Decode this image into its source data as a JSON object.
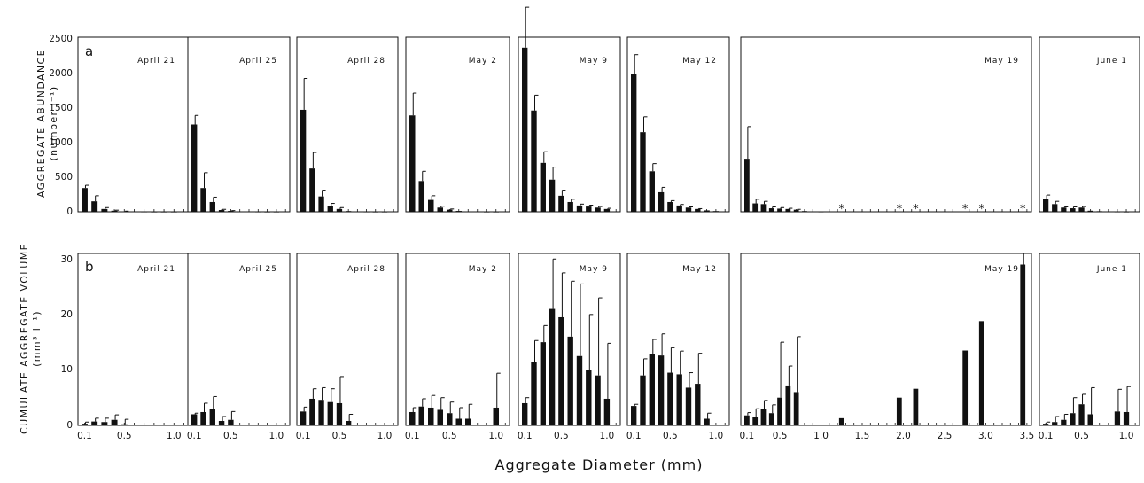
{
  "figure": {
    "x_title": "Aggregate Diameter (mm)",
    "row_a": {
      "letter": "a",
      "y_title_line1": "AGGREGATE ABUNDANCE",
      "y_title_line2": "(number l⁻¹)",
      "y_ticks": [
        "2500",
        "2000",
        "1500",
        "1000",
        "500",
        "0"
      ]
    },
    "row_b": {
      "letter": "b",
      "y_title_line1": "CUMULATE AGGREGATE VOLUME",
      "y_title_line2": "(mm³ l⁻¹)",
      "y_ticks": [
        "30",
        "20",
        "10",
        "0"
      ]
    }
  },
  "chart_data": [
    {
      "type": "bar",
      "row": "a",
      "ylim": [
        0,
        2500
      ],
      "ylabel": "AGGREGATE ABUNDANCE (number l-1)",
      "xlabel": "Aggregate Diameter (mm)",
      "panels": [
        {
          "label": "April 21",
          "xlim": [
            0.1,
            1.1
          ],
          "x": [
            0.1,
            0.2,
            0.3,
            0.4,
            0.5,
            0.6,
            0.7,
            0.8,
            0.9,
            1.0
          ],
          "values": [
            340,
            150,
            40,
            15,
            6,
            4,
            3,
            2,
            2,
            2
          ],
          "errors": [
            40,
            80,
            20,
            8,
            3,
            0,
            0,
            0,
            0,
            0
          ]
        },
        {
          "label": "April 25",
          "xlim": [
            0.1,
            1.1
          ],
          "x": [
            0.1,
            0.2,
            0.3,
            0.4,
            0.5,
            0.6,
            0.7,
            0.8,
            0.9,
            1.0
          ],
          "values": [
            1250,
            340,
            140,
            25,
            12,
            6,
            4,
            3,
            2,
            2
          ],
          "errors": [
            130,
            220,
            70,
            10,
            5,
            0,
            0,
            0,
            0,
            0
          ]
        },
        {
          "label": "April 28",
          "xlim": [
            0.1,
            1.1
          ],
          "x": [
            0.1,
            0.2,
            0.3,
            0.4,
            0.5,
            0.6,
            0.7,
            0.8,
            0.9,
            1.0
          ],
          "values": [
            1460,
            620,
            220,
            80,
            40,
            10,
            5,
            3,
            2,
            2
          ],
          "errors": [
            450,
            230,
            90,
            40,
            20,
            0,
            0,
            0,
            0,
            0
          ]
        },
        {
          "label": "May 2",
          "xlim": [
            0.1,
            1.1
          ],
          "x": [
            0.1,
            0.2,
            0.3,
            0.4,
            0.5,
            0.6,
            0.7,
            0.8,
            0.9,
            1.0
          ],
          "values": [
            1380,
            440,
            170,
            60,
            30,
            12,
            6,
            4,
            2,
            2
          ],
          "errors": [
            320,
            140,
            60,
            20,
            10,
            0,
            0,
            0,
            0,
            0
          ]
        },
        {
          "label": "May 9",
          "xlim": [
            0.1,
            1.1
          ],
          "x": [
            0.1,
            0.2,
            0.3,
            0.4,
            0.5,
            0.6,
            0.7,
            0.8,
            0.9,
            1.0
          ],
          "values": [
            2350,
            1450,
            700,
            460,
            230,
            140,
            90,
            75,
            60,
            40
          ],
          "errors": [
            580,
            220,
            160,
            180,
            80,
            40,
            20,
            20,
            15,
            10
          ]
        },
        {
          "label": "May 12",
          "xlim": [
            0.1,
            1.1
          ],
          "x": [
            0.1,
            0.2,
            0.3,
            0.4,
            0.5,
            0.6,
            0.7,
            0.8,
            0.9,
            1.0
          ],
          "values": [
            1970,
            1140,
            580,
            280,
            140,
            90,
            60,
            40,
            20,
            10
          ],
          "errors": [
            280,
            220,
            110,
            70,
            20,
            15,
            10,
            5,
            0,
            0
          ]
        },
        {
          "label": "May 19",
          "xlim": [
            0.1,
            3.5
          ],
          "x": [
            0.1,
            0.2,
            0.3,
            0.4,
            0.5,
            0.6,
            0.7,
            0.8,
            0.9,
            1.0
          ],
          "values": [
            760,
            120,
            110,
            50,
            45,
            40,
            30,
            10,
            5,
            3
          ],
          "errors": [
            460,
            60,
            40,
            20,
            15,
            10,
            5,
            0,
            0,
            0
          ],
          "markers_x": [
            1.25,
            1.95,
            2.15,
            2.75,
            2.95,
            3.45
          ],
          "marker_symbol": "*"
        },
        {
          "label": "June 1",
          "xlim": [
            0.1,
            1.1
          ],
          "x": [
            0.1,
            0.2,
            0.3,
            0.4,
            0.5,
            0.6,
            0.7,
            0.8,
            0.9,
            1.0
          ],
          "values": [
            190,
            110,
            60,
            50,
            60,
            15,
            8,
            5,
            3,
            2
          ],
          "errors": [
            50,
            40,
            10,
            20,
            15,
            0,
            0,
            0,
            0,
            0
          ]
        }
      ]
    },
    {
      "type": "bar",
      "row": "b",
      "ylim": [
        0,
        31
      ],
      "ylabel": "CUMULATE AGGREGATE VOLUME (mm3 l-1)",
      "xlabel": "Aggregate Diameter (mm)",
      "panels": [
        {
          "label": "April 21",
          "xlim": [
            0.1,
            1.1
          ],
          "x_ticks": [
            "0.1",
            "0.5",
            "1.0"
          ],
          "x": [
            0.1,
            0.2,
            0.3,
            0.4,
            0.5,
            0.6
          ],
          "values": [
            0.3,
            0.7,
            0.6,
            1.0,
            0.2,
            0.1
          ],
          "errors": [
            0.3,
            0.6,
            0.7,
            0.9,
            0.9,
            0
          ]
        },
        {
          "label": "April 25",
          "xlim": [
            0.1,
            1.1
          ],
          "x_ticks": [
            "0.1",
            "0.5",
            "1.0"
          ],
          "x": [
            0.1,
            0.2,
            0.3,
            0.4,
            0.5
          ],
          "values": [
            2.0,
            2.4,
            3.0,
            0.8,
            1.0
          ],
          "errors": [
            0.2,
            1.6,
            2.2,
            0.8,
            1.5
          ]
        },
        {
          "label": "April 28",
          "xlim": [
            0.1,
            1.1
          ],
          "x_ticks": [
            "0.1",
            "0.5",
            "1.0"
          ],
          "x": [
            0.1,
            0.2,
            0.3,
            0.4,
            0.5,
            0.6
          ],
          "values": [
            2.5,
            4.8,
            4.6,
            4.2,
            4.0,
            0.8
          ],
          "errors": [
            0.8,
            1.8,
            2.2,
            2.4,
            4.8,
            1.2
          ]
        },
        {
          "label": "May 2",
          "xlim": [
            0.1,
            1.1
          ],
          "x_ticks": [
            "0.1",
            "0.5",
            "1.0"
          ],
          "x": [
            0.1,
            0.2,
            0.3,
            0.4,
            0.5,
            0.6,
            0.7,
            1.0
          ],
          "values": [
            2.4,
            3.4,
            3.2,
            2.8,
            2.2,
            1.2,
            1.2,
            3.2
          ],
          "errors": [
            0.8,
            1.4,
            2.2,
            2.2,
            2.0,
            2.0,
            2.6,
            6.2
          ]
        },
        {
          "label": "May 9",
          "xlim": [
            0.1,
            1.1
          ],
          "x_ticks": [
            "0.1",
            "0.5",
            "1.0"
          ],
          "x": [
            0.1,
            0.2,
            0.3,
            0.4,
            0.5,
            0.6,
            0.7,
            0.8,
            0.9,
            1.0
          ],
          "values": [
            4.0,
            11.5,
            15.0,
            21.0,
            19.5,
            16.0,
            12.5,
            10.0,
            9.0,
            4.8
          ],
          "errors": [
            1.0,
            3.8,
            3.0,
            9.0,
            8.0,
            10.0,
            13.0,
            10.0,
            14.0,
            10.0
          ]
        },
        {
          "label": "May 12",
          "xlim": [
            0.1,
            1.1
          ],
          "x_ticks": [
            "0.1",
            "0.5",
            "1.0"
          ],
          "x": [
            0.1,
            0.2,
            0.3,
            0.4,
            0.5,
            0.6,
            0.7,
            0.8,
            0.9,
            1.0
          ],
          "values": [
            3.5,
            9.0,
            12.8,
            12.6,
            9.5,
            9.2,
            6.8,
            7.5,
            1.2,
            0
          ],
          "errors": [
            0.3,
            3.0,
            2.7,
            3.9,
            4.5,
            4.2,
            2.7,
            5.5,
            1.0,
            0
          ]
        },
        {
          "label": "May 19",
          "xlim": [
            0.1,
            3.5
          ],
          "x_ticks": [
            "0.1",
            "0.5",
            "1.0",
            "1.5",
            "2.0",
            "2.5",
            "3.0",
            "3.5"
          ],
          "x": [
            0.1,
            0.2,
            0.3,
            0.4,
            0.5,
            0.6,
            0.7,
            1.25,
            1.95,
            2.15,
            2.75,
            2.95,
            3.45
          ],
          "values": [
            1.8,
            1.5,
            3.0,
            2.2,
            5.0,
            7.2,
            6.0,
            1.3,
            5.0,
            6.6,
            13.5,
            18.8,
            29.0
          ],
          "errors": [
            0.5,
            1.5,
            1.5,
            1.5,
            10.0,
            3.5,
            10.0,
            0,
            0,
            0,
            0,
            0,
            2.0
          ]
        },
        {
          "label": "June 1",
          "xlim": [
            0.1,
            1.1
          ],
          "x_ticks": [
            "0.1",
            "0.5",
            "1.0"
          ],
          "x": [
            0.1,
            0.2,
            0.3,
            0.4,
            0.5,
            0.6,
            0.7,
            0.9,
            1.0
          ],
          "values": [
            0.3,
            0.6,
            1.0,
            2.2,
            3.8,
            2.0,
            0,
            2.5,
            2.4
          ],
          "errors": [
            0.3,
            1.0,
            1.0,
            2.8,
            1.8,
            4.8,
            0,
            4.0,
            4.6
          ]
        }
      ]
    }
  ]
}
